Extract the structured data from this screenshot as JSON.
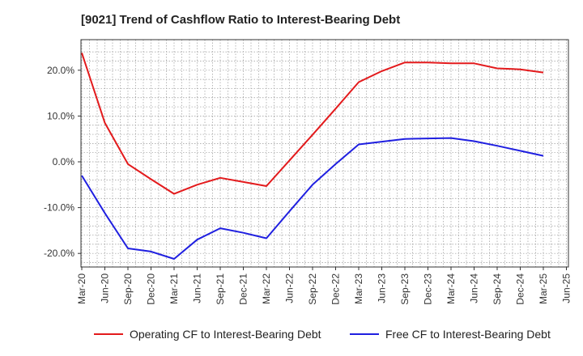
{
  "title": "[9021]  Trend of Cashflow Ratio to Interest-Bearing Debt",
  "colors": {
    "operating": "#e31a1c",
    "free": "#1f1fe0",
    "grid": "#999999",
    "axis": "#333333"
  },
  "legend": [
    {
      "label": "Operating CF to Interest-Bearing Debt",
      "color": "#e31a1c"
    },
    {
      "label": "Free CF to Interest-Bearing Debt",
      "color": "#1f1fe0"
    }
  ],
  "chart_data": {
    "type": "line",
    "title": "[9021]  Trend of Cashflow Ratio to Interest-Bearing Debt",
    "xlabel": "",
    "ylabel": "",
    "x_ticks": [
      "Mar-20",
      "Jun-20",
      "Sep-20",
      "Dec-20",
      "Mar-21",
      "Jun-21",
      "Sep-21",
      "Dec-21",
      "Mar-22",
      "Jun-22",
      "Sep-22",
      "Dec-22",
      "Mar-23",
      "Jun-23",
      "Sep-23",
      "Dec-23",
      "Mar-24",
      "Jun-24",
      "Sep-24",
      "Dec-24",
      "Mar-25",
      "Jun-25"
    ],
    "y_ticks": [
      20,
      10,
      0,
      -10,
      -20
    ],
    "y_tick_labels": [
      "20.0%",
      "10.0%",
      "0.0%",
      "-10.0%",
      "-20.0%"
    ],
    "ylim": [
      -23,
      26
    ],
    "grid": true,
    "legend_position": "bottom",
    "series": [
      {
        "name": "Operating CF to Interest-Bearing Debt",
        "color": "#e31a1c",
        "points": [
          [
            "Mar-20",
            23.8
          ],
          [
            "Jun-20",
            8.5
          ],
          [
            "Sep-20",
            -0.5
          ],
          [
            "Dec-20",
            -3.8
          ],
          [
            "Mar-21",
            -7.0
          ],
          [
            "Jun-21",
            -5.0
          ],
          [
            "Sep-21",
            -3.5
          ],
          [
            "Dec-21",
            -4.4
          ],
          [
            "Mar-22",
            -5.3
          ],
          [
            "Jun-22",
            0.3
          ],
          [
            "Sep-22",
            5.9
          ],
          [
            "Dec-22",
            11.6
          ],
          [
            "Mar-23",
            17.4
          ],
          [
            "Jun-23",
            19.8
          ],
          [
            "Sep-23",
            21.7
          ],
          [
            "Dec-23",
            21.7
          ],
          [
            "Mar-24",
            21.5
          ],
          [
            "Jun-24",
            21.5
          ],
          [
            "Sep-24",
            20.4
          ],
          [
            "Dec-24",
            20.2
          ],
          [
            "Mar-25",
            19.5
          ]
        ]
      },
      {
        "name": "Free CF to Interest-Bearing Debt",
        "color": "#1f1fe0",
        "points": [
          [
            "Mar-20",
            -3.0
          ],
          [
            "Jun-20",
            -11.2
          ],
          [
            "Sep-20",
            -18.9
          ],
          [
            "Dec-20",
            -19.6
          ],
          [
            "Mar-21",
            -21.2
          ],
          [
            "Jun-21",
            -17.0
          ],
          [
            "Sep-21",
            -14.5
          ],
          [
            "Dec-21",
            -15.5
          ],
          [
            "Mar-22",
            -16.7
          ],
          [
            "Jun-22",
            -10.8
          ],
          [
            "Sep-22",
            -5.0
          ],
          [
            "Dec-22",
            -0.5
          ],
          [
            "Mar-23",
            3.8
          ],
          [
            "Jun-23",
            4.4
          ],
          [
            "Sep-23",
            5.0
          ],
          [
            "Dec-23",
            5.1
          ],
          [
            "Mar-24",
            5.2
          ],
          [
            "Jun-24",
            4.5
          ],
          [
            "Sep-24",
            3.5
          ],
          [
            "Dec-24",
            2.4
          ],
          [
            "Mar-25",
            1.3
          ]
        ]
      }
    ]
  }
}
